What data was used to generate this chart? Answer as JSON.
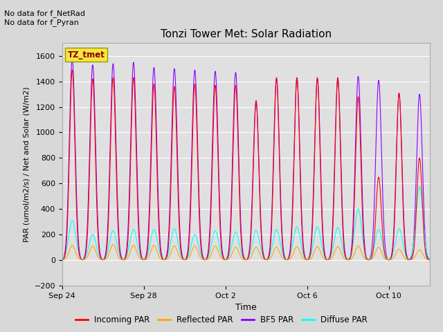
{
  "title": "Tonzi Tower Met: Solar Radiation",
  "xlabel": "Time",
  "ylabel": "PAR (umol/m2/s) / Net and Solar (W/m2)",
  "ylim": [
    -200,
    1700
  ],
  "yticks": [
    -200,
    0,
    200,
    400,
    600,
    800,
    1000,
    1200,
    1400,
    1600
  ],
  "annotation_text": "No data for f_NetRad\nNo data for f_Pyran",
  "label_box_text": "TZ_tmet",
  "label_box_color": "#f5e642",
  "label_box_text_color": "#8b0000",
  "start_doy": 267,
  "num_days": 18,
  "x_tick_labels": [
    "Sep 24",
    "Sep 28",
    "Oct 2",
    "Oct 6",
    "Oct 10"
  ],
  "x_tick_positions": [
    267,
    271,
    275,
    279,
    283
  ],
  "colors": {
    "incoming": "#ff0000",
    "reflected": "#ffa500",
    "bf5": "#8800ff",
    "diffuse": "#00ffff"
  },
  "legend_labels": [
    "Incoming PAR",
    "Reflected PAR",
    "BF5 PAR",
    "Diffuse PAR"
  ],
  "fig_bg_color": "#d8d8d8",
  "plot_bg_color": "#e0e0e0",
  "grid_color": "#ffffff",
  "bf5_peaks": [
    1580,
    1530,
    1540,
    1550,
    1510,
    1500,
    1490,
    1480,
    1470,
    1250,
    1430,
    1430,
    1430,
    1430,
    1440,
    1410,
    1305,
    1300
  ],
  "incoming_peaks": [
    1490,
    1420,
    1430,
    1430,
    1380,
    1360,
    1380,
    1370,
    1370,
    1240,
    1420,
    1420,
    1420,
    1420,
    1280,
    650,
    1310,
    800
  ],
  "reflected_peaks": [
    115,
    110,
    120,
    115,
    115,
    110,
    110,
    110,
    100,
    100,
    100,
    105,
    105,
    105,
    110,
    100,
    85,
    80
  ],
  "diffuse_peaks": [
    310,
    200,
    230,
    240,
    240,
    245,
    200,
    230,
    220,
    230,
    240,
    260,
    260,
    255,
    400,
    240,
    245,
    575
  ]
}
